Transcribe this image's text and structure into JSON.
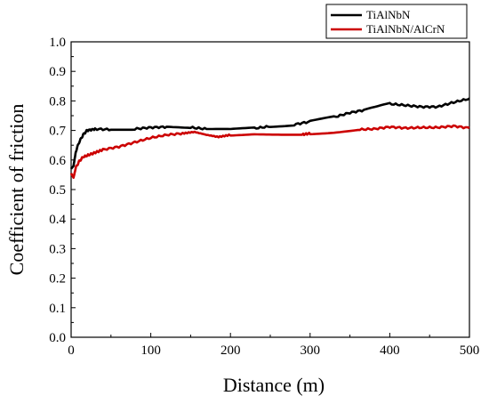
{
  "chart_data": {
    "type": "line",
    "xlabel": "Distance (m)",
    "ylabel": "Coefficient of friction",
    "xlim": [
      0,
      500
    ],
    "ylim": [
      0.0,
      1.0
    ],
    "x_ticks": [
      0,
      100,
      200,
      300,
      400,
      500
    ],
    "y_ticks": [
      "0.0",
      "0.1",
      "0.2",
      "0.3",
      "0.4",
      "0.5",
      "0.6",
      "0.7",
      "0.8",
      "0.9",
      "1.0"
    ],
    "grid": false,
    "legend_position": "top-right",
    "series": [
      {
        "name": "TiAlNbN",
        "color": "#000000",
        "points": [
          [
            0,
            0.57
          ],
          [
            3,
            0.58
          ],
          [
            6,
            0.63
          ],
          [
            10,
            0.66
          ],
          [
            15,
            0.685
          ],
          [
            20,
            0.7
          ],
          [
            30,
            0.705
          ],
          [
            50,
            0.703
          ],
          [
            80,
            0.705
          ],
          [
            100,
            0.71
          ],
          [
            120,
            0.712
          ],
          [
            150,
            0.71
          ],
          [
            170,
            0.705
          ],
          [
            200,
            0.703
          ],
          [
            230,
            0.707
          ],
          [
            250,
            0.714
          ],
          [
            280,
            0.72
          ],
          [
            300,
            0.73
          ],
          [
            330,
            0.745
          ],
          [
            350,
            0.76
          ],
          [
            370,
            0.77
          ],
          [
            400,
            0.79
          ],
          [
            420,
            0.785
          ],
          [
            440,
            0.78
          ],
          [
            460,
            0.78
          ],
          [
            480,
            0.795
          ],
          [
            500,
            0.808
          ]
        ]
      },
      {
        "name": "TiAlNbN/AlCrN",
        "color": "#cc0000",
        "points": [
          [
            0,
            0.555
          ],
          [
            3,
            0.54
          ],
          [
            6,
            0.575
          ],
          [
            10,
            0.595
          ],
          [
            15,
            0.61
          ],
          [
            25,
            0.62
          ],
          [
            40,
            0.635
          ],
          [
            60,
            0.645
          ],
          [
            80,
            0.66
          ],
          [
            100,
            0.675
          ],
          [
            120,
            0.685
          ],
          [
            140,
            0.69
          ],
          [
            155,
            0.695
          ],
          [
            170,
            0.685
          ],
          [
            185,
            0.678
          ],
          [
            200,
            0.685
          ],
          [
            230,
            0.69
          ],
          [
            260,
            0.688
          ],
          [
            290,
            0.686
          ],
          [
            300,
            0.69
          ],
          [
            330,
            0.695
          ],
          [
            360,
            0.703
          ],
          [
            380,
            0.705
          ],
          [
            400,
            0.712
          ],
          [
            420,
            0.708
          ],
          [
            440,
            0.71
          ],
          [
            460,
            0.71
          ],
          [
            480,
            0.715
          ],
          [
            500,
            0.708
          ]
        ]
      }
    ]
  }
}
